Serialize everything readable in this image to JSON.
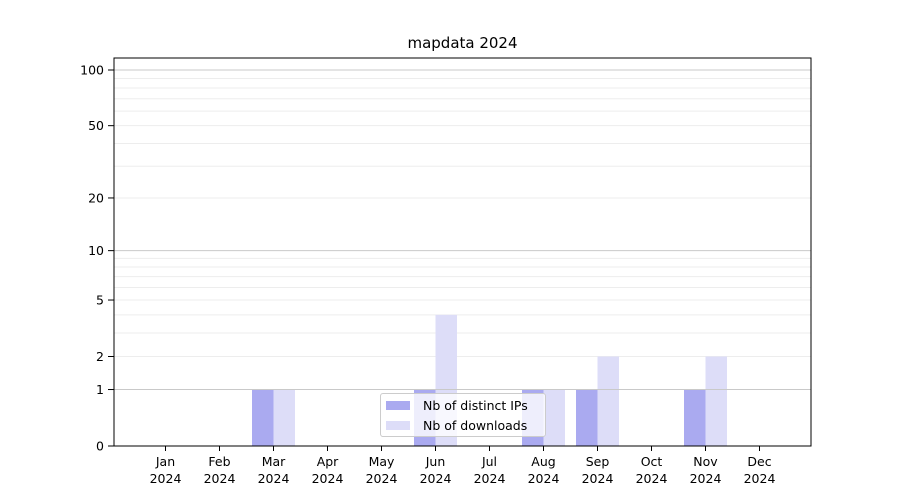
{
  "chart_data": {
    "type": "bar",
    "title": "mapdata 2024",
    "categories": [
      "Jan",
      "Feb",
      "Mar",
      "Apr",
      "May",
      "Jun",
      "Jul",
      "Aug",
      "Sep",
      "Oct",
      "Nov",
      "Dec"
    ],
    "year_label": "2024",
    "series": [
      {
        "name": "Nb of distinct IPs",
        "color": "#aaaaf0",
        "values": [
          0,
          0,
          1,
          0,
          0,
          1,
          0,
          1,
          1,
          0,
          1,
          0
        ]
      },
      {
        "name": "Nb of downloads",
        "color": "#ddddf8",
        "values": [
          0,
          0,
          1,
          0,
          0,
          4,
          0,
          1,
          2,
          0,
          2,
          0
        ]
      }
    ],
    "xlabel": "",
    "ylabel": "",
    "y_scale": "log1p",
    "ylim": [
      0,
      115
    ],
    "y_ticks": [
      0,
      1,
      2,
      5,
      10,
      20,
      50,
      100
    ],
    "grid": {
      "major_values": [
        1,
        10,
        100
      ],
      "minor_values": [
        2,
        3,
        4,
        5,
        6,
        7,
        8,
        9,
        20,
        30,
        40,
        50,
        60,
        70,
        80,
        90
      ],
      "major_color": "#c9c9c9",
      "minor_color": "#ededed"
    },
    "axis_color": "#000000",
    "legend_position": "bottom-center"
  }
}
